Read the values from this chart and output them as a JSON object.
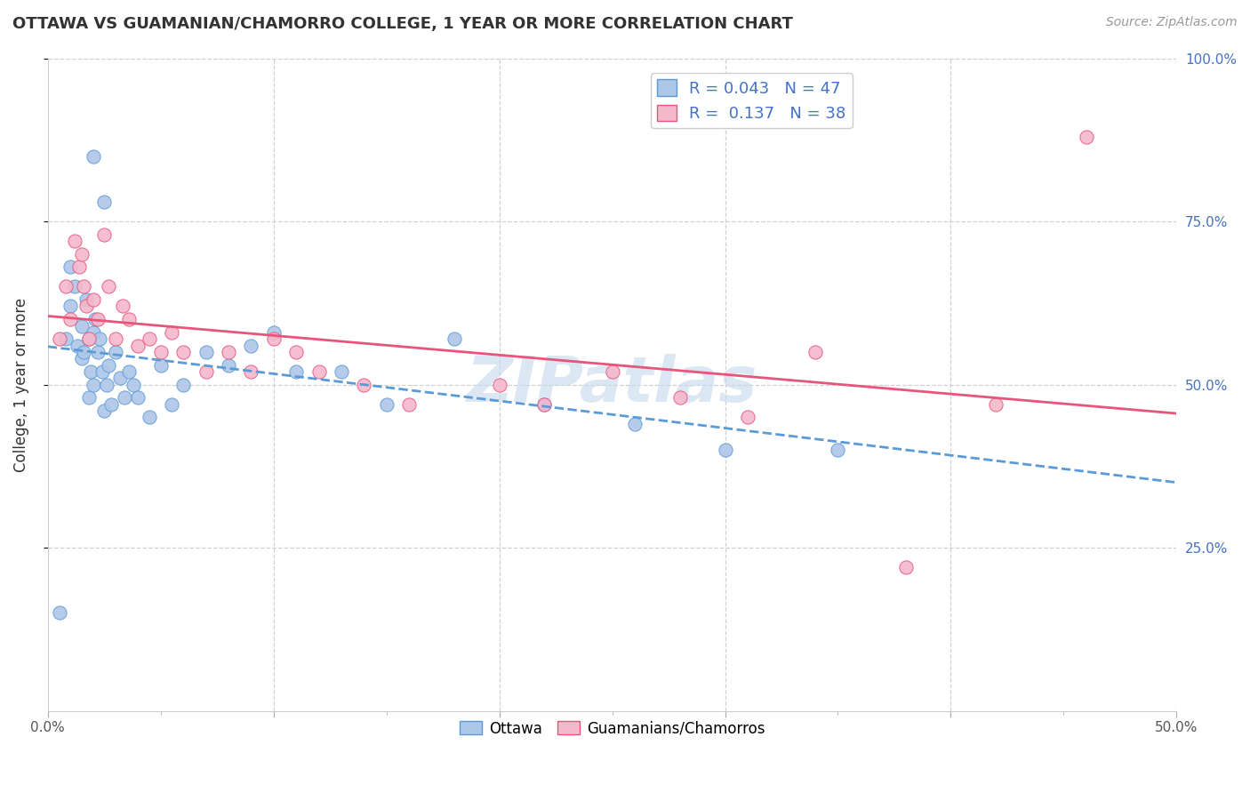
{
  "title": "OTTAWA VS GUAMANIAN/CHAMORRO COLLEGE, 1 YEAR OR MORE CORRELATION CHART",
  "source": "Source: ZipAtlas.com",
  "ylabel": "College, 1 year or more",
  "xlim": [
    0.0,
    0.5
  ],
  "ylim": [
    0.0,
    1.0
  ],
  "xtick_vals": [
    0.0,
    0.1,
    0.2,
    0.3,
    0.4,
    0.5
  ],
  "xtick_labels": [
    "0.0%",
    "",
    "",
    "",
    "",
    "50.0%"
  ],
  "ytick_vals": [
    0.25,
    0.5,
    0.75,
    1.0
  ],
  "ytick_right_labels": [
    "25.0%",
    "50.0%",
    "75.0%",
    "100.0%"
  ],
  "legend_R1": "0.043",
  "legend_N1": "47",
  "legend_R2": "0.137",
  "legend_N2": "38",
  "color_ottawa": "#aec6e8",
  "color_guam": "#f4b8cc",
  "color_line_ottawa": "#5b9bd5",
  "color_line_guam": "#e8547a",
  "watermark": "ZIPatlas",
  "watermark_color": "#c5d8ed",
  "grid_color": "#d0d0d0",
  "right_axis_color": "#4472c4",
  "ottawa_x": [
    0.005,
    0.008,
    0.01,
    0.01,
    0.012,
    0.013,
    0.015,
    0.015,
    0.016,
    0.017,
    0.018,
    0.018,
    0.019,
    0.02,
    0.02,
    0.021,
    0.022,
    0.023,
    0.024,
    0.025,
    0.026,
    0.027,
    0.028,
    0.03,
    0.032,
    0.034,
    0.036,
    0.038,
    0.04,
    0.045,
    0.05,
    0.055,
    0.06,
    0.07,
    0.08,
    0.09,
    0.1,
    0.11,
    0.13,
    0.15,
    0.18,
    0.22,
    0.26,
    0.3,
    0.35,
    0.02,
    0.025
  ],
  "ottawa_y": [
    0.15,
    0.57,
    0.68,
    0.62,
    0.65,
    0.56,
    0.54,
    0.59,
    0.55,
    0.63,
    0.57,
    0.48,
    0.52,
    0.58,
    0.5,
    0.6,
    0.55,
    0.57,
    0.52,
    0.46,
    0.5,
    0.53,
    0.47,
    0.55,
    0.51,
    0.48,
    0.52,
    0.5,
    0.48,
    0.45,
    0.53,
    0.47,
    0.5,
    0.55,
    0.53,
    0.56,
    0.58,
    0.52,
    0.52,
    0.47,
    0.57,
    0.47,
    0.44,
    0.4,
    0.4,
    0.85,
    0.78
  ],
  "guam_x": [
    0.005,
    0.008,
    0.01,
    0.012,
    0.014,
    0.015,
    0.016,
    0.017,
    0.018,
    0.02,
    0.022,
    0.025,
    0.027,
    0.03,
    0.033,
    0.036,
    0.04,
    0.045,
    0.05,
    0.055,
    0.06,
    0.07,
    0.08,
    0.09,
    0.1,
    0.11,
    0.12,
    0.14,
    0.16,
    0.2,
    0.22,
    0.25,
    0.28,
    0.31,
    0.34,
    0.38,
    0.42,
    0.46
  ],
  "guam_y": [
    0.57,
    0.65,
    0.6,
    0.72,
    0.68,
    0.7,
    0.65,
    0.62,
    0.57,
    0.63,
    0.6,
    0.73,
    0.65,
    0.57,
    0.62,
    0.6,
    0.56,
    0.57,
    0.55,
    0.58,
    0.55,
    0.52,
    0.55,
    0.52,
    0.57,
    0.55,
    0.52,
    0.5,
    0.47,
    0.5,
    0.47,
    0.52,
    0.48,
    0.45,
    0.55,
    0.22,
    0.47,
    0.88
  ]
}
